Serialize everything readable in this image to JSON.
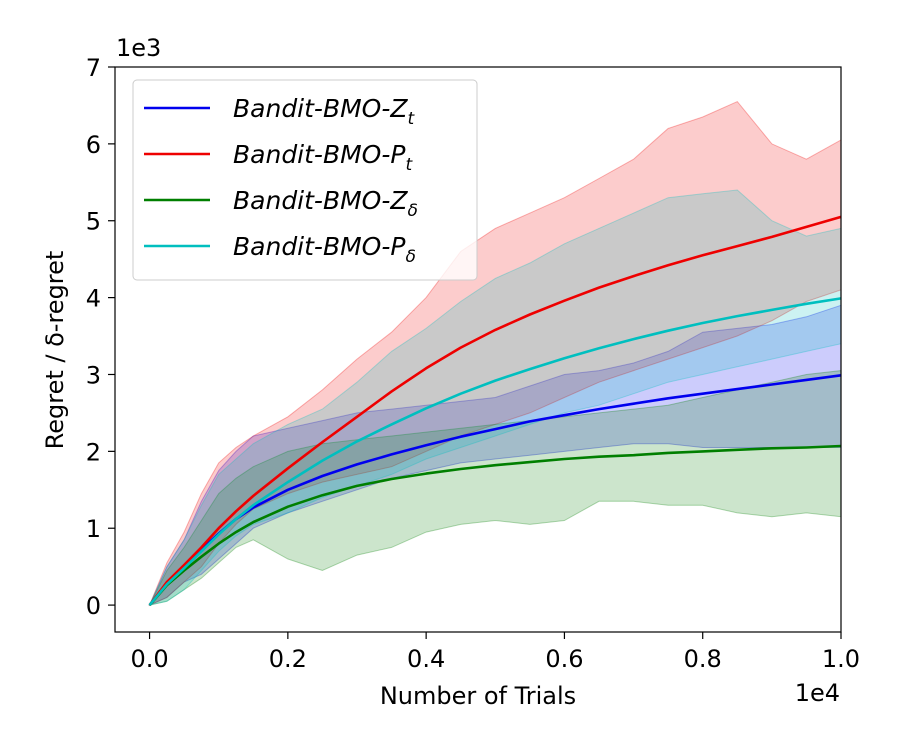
{
  "chart_data": {
    "type": "line",
    "xlabel": "Number of Trials",
    "ylabel": "Regret / δ-regret",
    "x_multiplier": "1e4",
    "y_multiplier": "1e3",
    "xlim": [
      -0.05,
      1.0
    ],
    "ylim": [
      -0.35,
      7.0
    ],
    "x_ticks": [
      0.0,
      0.2,
      0.4,
      0.6,
      0.8,
      1.0
    ],
    "x_tick_labels": [
      "0.0",
      "0.2",
      "0.4",
      "0.6",
      "0.8",
      "1.0"
    ],
    "y_ticks": [
      0,
      1,
      2,
      3,
      4,
      5,
      6,
      7
    ],
    "y_tick_labels": [
      "0",
      "1",
      "2",
      "3",
      "4",
      "5",
      "6",
      "7"
    ],
    "grid": false,
    "legend_position": "top-left",
    "x": [
      0.0,
      0.025,
      0.05,
      0.075,
      0.1,
      0.125,
      0.15,
      0.2,
      0.25,
      0.3,
      0.35,
      0.4,
      0.45,
      0.5,
      0.55,
      0.6,
      0.65,
      0.7,
      0.75,
      0.8,
      0.85,
      0.9,
      0.95,
      1.0
    ],
    "series": [
      {
        "name": "Bandit-BMO-Z",
        "name_sub": "t",
        "color": "#0000ee",
        "values": [
          0.0,
          0.28,
          0.5,
          0.72,
          0.93,
          1.12,
          1.27,
          1.5,
          1.68,
          1.83,
          1.96,
          2.08,
          2.19,
          2.29,
          2.39,
          2.47,
          2.55,
          2.62,
          2.69,
          2.75,
          2.81,
          2.87,
          2.93,
          2.99
        ],
        "upper": [
          0.0,
          0.5,
          0.85,
          1.35,
          1.75,
          2.0,
          2.2,
          2.3,
          2.4,
          2.5,
          2.55,
          2.6,
          2.65,
          2.7,
          2.85,
          3.0,
          3.05,
          3.15,
          3.3,
          3.55,
          3.6,
          3.65,
          3.75,
          3.9
        ],
        "lower": [
          0.0,
          0.1,
          0.3,
          0.4,
          0.6,
          0.8,
          1.0,
          1.2,
          1.35,
          1.5,
          1.65,
          1.75,
          1.85,
          1.9,
          1.95,
          2.0,
          2.05,
          2.1,
          2.1,
          2.05,
          2.05,
          2.05,
          2.05,
          2.05
        ]
      },
      {
        "name": "Bandit-BMO-P",
        "name_sub": "t",
        "color": "#ee0000",
        "values": [
          0.0,
          0.3,
          0.52,
          0.75,
          1.0,
          1.22,
          1.42,
          1.78,
          2.12,
          2.45,
          2.78,
          3.08,
          3.35,
          3.58,
          3.78,
          3.96,
          4.13,
          4.28,
          4.42,
          4.55,
          4.67,
          4.79,
          4.92,
          5.05
        ],
        "upper": [
          0.0,
          0.55,
          0.95,
          1.45,
          1.85,
          2.05,
          2.2,
          2.45,
          2.8,
          3.2,
          3.55,
          4.0,
          4.6,
          4.9,
          5.1,
          5.3,
          5.55,
          5.8,
          6.2,
          6.35,
          6.55,
          6.0,
          5.8,
          6.05
        ],
        "lower": [
          0.0,
          0.1,
          0.3,
          0.5,
          0.8,
          1.05,
          1.25,
          1.45,
          1.6,
          1.7,
          1.8,
          2.0,
          2.2,
          2.35,
          2.5,
          2.7,
          2.9,
          3.05,
          3.2,
          3.35,
          3.5,
          3.7,
          3.95,
          4.1
        ]
      },
      {
        "name": "Bandit-BMO-Z",
        "name_sub": "δ",
        "color": "#007f00",
        "values": [
          0.0,
          0.26,
          0.45,
          0.63,
          0.8,
          0.95,
          1.08,
          1.28,
          1.43,
          1.55,
          1.64,
          1.71,
          1.77,
          1.82,
          1.86,
          1.9,
          1.93,
          1.95,
          1.98,
          2.0,
          2.02,
          2.04,
          2.05,
          2.07
        ],
        "upper": [
          0.0,
          0.45,
          0.75,
          1.1,
          1.45,
          1.65,
          1.8,
          2.0,
          2.1,
          2.15,
          2.2,
          2.25,
          2.3,
          2.35,
          2.4,
          2.45,
          2.5,
          2.55,
          2.6,
          2.7,
          2.8,
          2.9,
          3.0,
          3.05
        ],
        "lower": [
          0.0,
          0.05,
          0.2,
          0.35,
          0.55,
          0.75,
          0.85,
          0.6,
          0.45,
          0.65,
          0.75,
          0.95,
          1.05,
          1.1,
          1.05,
          1.1,
          1.35,
          1.35,
          1.3,
          1.3,
          1.2,
          1.15,
          1.2,
          1.15
        ]
      },
      {
        "name": "Bandit-BMO-P",
        "name_sub": "δ",
        "color": "#00bfbf",
        "values": [
          0.0,
          0.27,
          0.48,
          0.7,
          0.92,
          1.12,
          1.3,
          1.6,
          1.88,
          2.13,
          2.35,
          2.56,
          2.75,
          2.92,
          3.07,
          3.21,
          3.34,
          3.46,
          3.57,
          3.67,
          3.76,
          3.84,
          3.92,
          3.99
        ],
        "upper": [
          0.0,
          0.5,
          0.85,
          1.3,
          1.7,
          1.9,
          2.1,
          2.35,
          2.55,
          2.9,
          3.3,
          3.6,
          3.95,
          4.25,
          4.45,
          4.7,
          4.9,
          5.1,
          5.3,
          5.35,
          5.4,
          5.0,
          4.8,
          4.9
        ],
        "lower": [
          0.0,
          0.05,
          0.2,
          0.45,
          0.7,
          0.9,
          1.05,
          1.2,
          1.4,
          1.55,
          1.7,
          1.9,
          2.05,
          2.2,
          2.35,
          2.5,
          2.6,
          2.75,
          2.9,
          3.0,
          3.1,
          3.2,
          3.3,
          3.4
        ]
      }
    ]
  }
}
